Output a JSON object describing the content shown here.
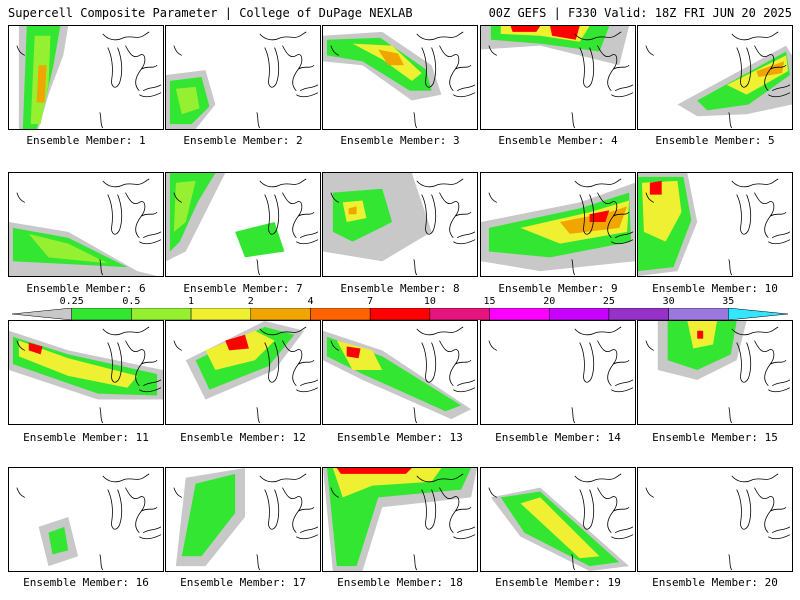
{
  "header": {
    "left": "Supercell Composite Parameter | College of DuPage NEXLAB",
    "right": "00Z GEFS | F330 Valid: 18Z FRI JUN 20 2025"
  },
  "legend": {
    "ticks": [
      "0.25",
      "0.5",
      "1",
      "2",
      "4",
      "7",
      "10",
      "15",
      "20",
      "25",
      "30",
      "35"
    ],
    "colors": [
      "#c8c8c8",
      "#32e632",
      "#96f032",
      "#f0f032",
      "#f0a500",
      "#ff6400",
      "#ff0000",
      "#e6147d",
      "#ff00ff",
      "#c800ff",
      "#9632c8",
      "#9b78dc",
      "#32e6ff"
    ]
  },
  "members": [
    {
      "label": "Ensemble Member: 1"
    },
    {
      "label": "Ensemble Member: 2"
    },
    {
      "label": "Ensemble Member: 3"
    },
    {
      "label": "Ensemble Member: 4"
    },
    {
      "label": "Ensemble Member: 5"
    },
    {
      "label": "Ensemble Member: 6"
    },
    {
      "label": "Ensemble Member: 7"
    },
    {
      "label": "Ensemble Member: 8"
    },
    {
      "label": "Ensemble Member: 9"
    },
    {
      "label": "Ensemble Member: 10"
    },
    {
      "label": "Ensemble Member: 11"
    },
    {
      "label": "Ensemble Member: 12"
    },
    {
      "label": "Ensemble Member: 13"
    },
    {
      "label": "Ensemble Member: 14"
    },
    {
      "label": "Ensemble Member: 15"
    },
    {
      "label": "Ensemble Member: 16"
    },
    {
      "label": "Ensemble Member: 17"
    },
    {
      "label": "Ensemble Member: 18"
    },
    {
      "label": "Ensemble Member: 19"
    },
    {
      "label": "Ensemble Member: 20"
    }
  ]
}
